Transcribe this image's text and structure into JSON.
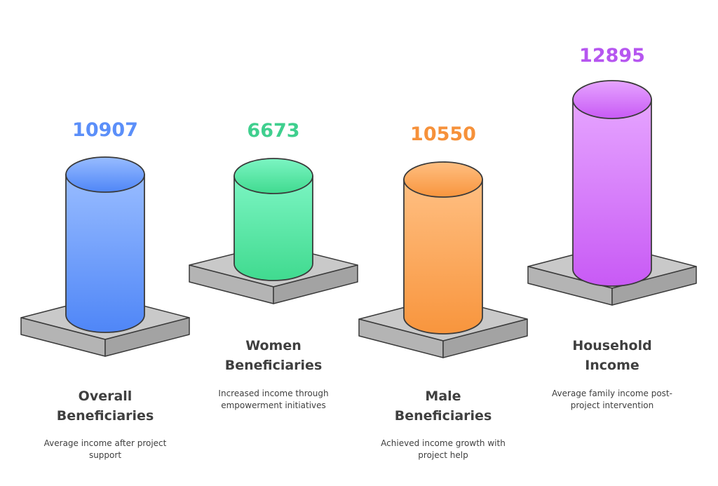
{
  "items": [
    {
      "value": "10907",
      "title": [
        "Overall",
        "Beneficiaries"
      ],
      "desc": [
        "Average income after project",
        "support"
      ],
      "color": "#5b8ff9"
    },
    {
      "value": "6673",
      "title": [
        "Women",
        "Beneficiaries"
      ],
      "desc": [
        "Increased income through",
        "empowerment initiatives"
      ],
      "color": "#3fcf8e"
    },
    {
      "value": "10550",
      "title": [
        "Male",
        "Beneficiaries"
      ],
      "desc": [
        "Achieved income growth with",
        "project help"
      ],
      "color": "#f6913a"
    },
    {
      "value": "12895",
      "title": [
        "Household",
        "Income"
      ],
      "desc": [
        "Average family income post-",
        "project intervention"
      ],
      "color": "#b656f0"
    }
  ],
  "colors": {
    "blue_top": "#98bcff",
    "blue_bottom": "#4f86f7",
    "green_top": "#7cf5c3",
    "green_bottom": "#40da8f",
    "orange_top": "#ffbf82",
    "orange_bottom": "#f8953d",
    "purple_top": "#e6a5ff",
    "purple_bottom": "#c85af5",
    "outline": "#3a3a3a",
    "plate_top": "#c9c9c9",
    "plate_side": "#a9a9a9",
    "text": "#3f3f3f"
  }
}
